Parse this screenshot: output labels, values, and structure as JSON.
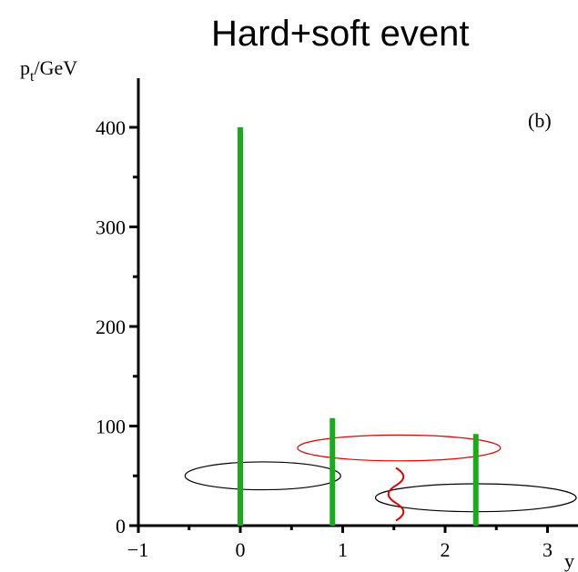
{
  "title": "Hard+soft event",
  "panel_label": "(b)",
  "chart_data": {
    "type": "bar",
    "title": "Hard+soft event",
    "xlabel": "y",
    "ylabel": "p_t/GeV",
    "ylabel_parts": {
      "base": "p",
      "sub": "t",
      "rest": "/GeV"
    },
    "xlim": [
      -1,
      3.2
    ],
    "ylim": [
      0,
      440
    ],
    "x_ticks": [
      -1,
      0,
      1,
      2,
      3
    ],
    "x_tick_labels": [
      "−1",
      "0",
      "1",
      "2",
      "3"
    ],
    "y_ticks": [
      0,
      100,
      200,
      300,
      400
    ],
    "y_tick_labels": [
      "0",
      "100",
      "200",
      "300",
      "400"
    ],
    "x_minor_ticks": [
      -0.5,
      0.5,
      1.5,
      2.5
    ],
    "y_minor_ticks": [
      50,
      150,
      250,
      350
    ],
    "grid": false,
    "series": [
      {
        "type": "spike",
        "color": "#1aab1a",
        "points": [
          {
            "x": 0.0,
            "y": 400
          },
          {
            "x": 0.9,
            "y": 108
          },
          {
            "x": 2.3,
            "y": 92
          }
        ]
      }
    ],
    "annotations": [
      {
        "type": "ellipse",
        "color": "#000000",
        "cx": 0.22,
        "cy": 50,
        "rx": 0.76,
        "ry": 14
      },
      {
        "type": "ellipse",
        "color": "#e00000",
        "cx": 1.55,
        "cy": 78,
        "rx": 0.99,
        "ry": 13
      },
      {
        "type": "ellipse",
        "color": "#000000",
        "cx": 2.3,
        "cy": 28,
        "rx": 0.98,
        "ry": 14
      },
      {
        "type": "wavy-line",
        "color": "#e00000",
        "x": 1.52,
        "y_from": 5,
        "y_to": 58
      }
    ]
  }
}
